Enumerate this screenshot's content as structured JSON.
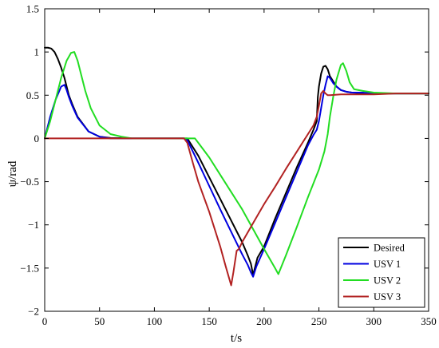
{
  "chart_data": {
    "type": "line",
    "title": "",
    "xlabel": "t/s",
    "ylabel": "ψ/rad",
    "xlim": [
      0,
      350
    ],
    "ylim": [
      -2,
      1.5
    ],
    "xticks": [
      0,
      50,
      100,
      150,
      200,
      250,
      300,
      350
    ],
    "yticks": [
      -2,
      -1.5,
      -1,
      -0.5,
      0,
      0.5,
      1,
      1.5
    ],
    "xtick_labels": [
      "0",
      "50",
      "100",
      "150",
      "200",
      "250",
      "300",
      "350"
    ],
    "ytick_labels": [
      "−2",
      "−1.5",
      "−1",
      "−0.5",
      "0",
      "0.5",
      "1",
      "1.5"
    ],
    "grid": false,
    "legend": {
      "placement": "bottom-right"
    },
    "series": [
      {
        "name": "Desired",
        "color": "#000000",
        "x": [
          0,
          3,
          6,
          9,
          12,
          15,
          18,
          20,
          22,
          25,
          30,
          40,
          50,
          60,
          80,
          100,
          130,
          140,
          150,
          160,
          170,
          180,
          185,
          188,
          190,
          194,
          200,
          210,
          220,
          230,
          240,
          245,
          248,
          249,
          250,
          252,
          254,
          256,
          258,
          260,
          263,
          266,
          270,
          275,
          280,
          290,
          300,
          320,
          340,
          350
        ],
        "y": [
          1.05,
          1.05,
          1.04,
          1.0,
          0.92,
          0.82,
          0.7,
          0.6,
          0.5,
          0.4,
          0.25,
          0.08,
          0.02,
          0.005,
          0,
          0,
          0,
          -0.2,
          -0.45,
          -0.7,
          -0.95,
          -1.2,
          -1.35,
          -1.45,
          -1.58,
          -1.38,
          -1.25,
          -0.93,
          -0.63,
          -0.33,
          -0.05,
          0.1,
          0.2,
          0.48,
          0.6,
          0.75,
          0.83,
          0.84,
          0.8,
          0.72,
          0.66,
          0.6,
          0.56,
          0.54,
          0.53,
          0.52,
          0.52,
          0.52,
          0.52,
          0.52
        ]
      },
      {
        "name": "USV 1",
        "color": "#0000e0",
        "x": [
          0,
          5,
          10,
          15,
          18,
          20,
          22,
          25,
          30,
          40,
          50,
          60,
          80,
          100,
          127,
          130,
          140,
          150,
          160,
          170,
          180,
          185,
          188,
          190,
          193,
          200,
          210,
          220,
          230,
          240,
          245,
          248,
          250,
          252,
          254,
          256,
          258,
          260,
          263,
          266,
          270,
          275,
          280,
          290,
          300,
          320,
          340,
          350
        ],
        "y": [
          0,
          0.25,
          0.45,
          0.6,
          0.62,
          0.56,
          0.48,
          0.38,
          0.24,
          0.08,
          0.02,
          0,
          0,
          0,
          0,
          -0.02,
          -0.28,
          -0.55,
          -0.82,
          -1.08,
          -1.34,
          -1.46,
          -1.55,
          -1.6,
          -1.48,
          -1.28,
          -0.98,
          -0.68,
          -0.38,
          -0.08,
          0.04,
          0.1,
          0.2,
          0.35,
          0.5,
          0.62,
          0.72,
          0.7,
          0.64,
          0.6,
          0.56,
          0.54,
          0.53,
          0.53,
          0.52,
          0.52,
          0.52,
          0.52
        ]
      },
      {
        "name": "USV 2",
        "color": "#22dd22",
        "x": [
          0,
          5,
          10,
          15,
          20,
          24,
          27,
          30,
          33,
          37,
          42,
          50,
          60,
          70,
          80,
          100,
          130,
          133,
          137,
          140,
          150,
          160,
          170,
          180,
          190,
          200,
          210,
          213,
          220,
          230,
          240,
          250,
          255,
          258,
          260,
          263,
          266,
          270,
          272,
          275,
          278,
          282,
          290,
          300,
          320,
          340,
          350
        ],
        "y": [
          0,
          0.2,
          0.45,
          0.7,
          0.9,
          0.99,
          1.0,
          0.9,
          0.75,
          0.55,
          0.35,
          0.15,
          0.05,
          0.02,
          0.0,
          0,
          0,
          0,
          0,
          -0.05,
          -0.22,
          -0.42,
          -0.62,
          -0.82,
          -1.05,
          -1.28,
          -1.5,
          -1.57,
          -1.35,
          -1.02,
          -0.68,
          -0.36,
          -0.15,
          0.05,
          0.25,
          0.48,
          0.68,
          0.85,
          0.87,
          0.78,
          0.65,
          0.57,
          0.55,
          0.53,
          0.52,
          0.52,
          0.52
        ]
      },
      {
        "name": "USV 3",
        "color": "#b22222",
        "x": [
          0,
          20,
          50,
          80,
          100,
          127,
          130,
          135,
          140,
          150,
          160,
          165,
          170,
          172,
          175,
          177,
          180,
          190,
          200,
          210,
          220,
          230,
          240,
          245,
          248,
          250,
          252,
          254,
          256,
          258,
          260,
          270,
          280,
          300,
          320,
          340,
          350
        ],
        "y": [
          0,
          0,
          0,
          0,
          0,
          0,
          -0.05,
          -0.28,
          -0.5,
          -0.85,
          -1.25,
          -1.48,
          -1.7,
          -1.55,
          -1.3,
          -1.28,
          -1.2,
          -0.98,
          -0.76,
          -0.56,
          -0.35,
          -0.15,
          0.05,
          0.15,
          0.25,
          0.38,
          0.52,
          0.55,
          0.52,
          0.5,
          0.5,
          0.51,
          0.51,
          0.51,
          0.52,
          0.52,
          0.52
        ]
      }
    ]
  }
}
